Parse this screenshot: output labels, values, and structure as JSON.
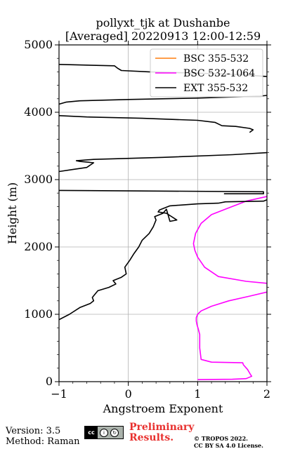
{
  "chart_data": {
    "type": "line",
    "title": "pollyxt_tjk at Dushanbe",
    "subtitle": "[Averaged] 20220913 12:00-12:59",
    "xlabel": "Angstroem Exponent",
    "ylabel": "Height (m)",
    "xlim": [
      -1,
      2
    ],
    "ylim": [
      0,
      5000
    ],
    "xticks": [
      -1,
      0,
      1,
      2
    ],
    "yticks": [
      0,
      1000,
      2000,
      3000,
      4000,
      5000
    ],
    "grid": true,
    "legend_position": "top-right",
    "series": [
      {
        "name": "BSC 355-532",
        "color": "#ff7f0e",
        "x": [],
        "y": []
      },
      {
        "name": "BSC 532-1064",
        "color": "#ff00ff",
        "x": [
          1.0,
          1.5,
          1.7,
          1.78,
          1.76,
          1.72,
          1.66,
          1.65,
          1.2,
          1.05,
          1.03,
          1.03,
          1.01,
          0.99,
          0.98,
          0.98,
          1.0,
          1.05,
          1.2,
          1.45,
          1.75,
          2.0,
          null,
          2.0,
          1.7,
          1.3,
          1.1,
          1.0,
          0.96,
          0.94,
          0.97,
          1.05,
          1.2,
          1.45,
          1.7,
          2.0
        ],
        "y": [
          30,
          35,
          45,
          80,
          110,
          180,
          250,
          280,
          290,
          330,
          500,
          700,
          780,
          850,
          900,
          950,
          1000,
          1050,
          1120,
          1200,
          1270,
          1330,
          null,
          1460,
          1490,
          1560,
          1700,
          1850,
          1950,
          2050,
          2200,
          2350,
          2480,
          2580,
          2680,
          2750
        ]
      },
      {
        "name": "EXT 355-532",
        "color": "#000000",
        "x": [
          -1.0,
          -0.85,
          -0.7,
          -0.55,
          -0.5,
          -0.52,
          -0.44,
          -0.28,
          -0.18,
          -0.22,
          -0.1,
          -0.03,
          -0.05,
          0.02,
          0.08,
          0.15,
          0.2,
          0.3,
          0.36,
          0.4,
          0.38,
          0.5,
          0.55,
          0.6,
          0.7,
          0.55,
          0.43,
          0.45,
          0.6,
          1.0,
          1.3,
          1.4,
          1.95,
          2.0,
          null,
          1.38,
          1.95,
          1.95,
          -1.0,
          null,
          -1.0,
          -0.8,
          -0.6,
          -0.5,
          -0.7,
          -0.75,
          -0.5,
          0.5,
          1.5,
          2.0,
          null,
          1.75,
          1.8,
          1.75,
          1.55,
          1.35,
          1.25,
          1.0,
          0.2,
          -0.6,
          -1.0,
          null,
          -1.0,
          -0.9,
          -0.7,
          0.0,
          1.0,
          1.9,
          2.0,
          null,
          2.0,
          1.6,
          1.0,
          0.3,
          -0.1,
          -0.15,
          -0.2,
          -1.0
        ],
        "y": [
          920,
          1000,
          1100,
          1160,
          1200,
          1250,
          1350,
          1400,
          1450,
          1500,
          1550,
          1600,
          1700,
          1800,
          1900,
          2000,
          2100,
          2200,
          2300,
          2400,
          2450,
          2500,
          2560,
          2380,
          2400,
          2500,
          2520,
          2550,
          2610,
          2640,
          2650,
          2670,
          2680,
          2700,
          null,
          2790,
          2790,
          2820,
          2840,
          null,
          3120,
          3150,
          3180,
          3250,
          3270,
          3280,
          3300,
          3330,
          3370,
          3400,
          null,
          3700,
          3740,
          3760,
          3790,
          3800,
          3850,
          3880,
          3910,
          3930,
          3950,
          null,
          4120,
          4150,
          4170,
          4190,
          4210,
          4240,
          4250,
          null,
          4530,
          4560,
          4580,
          4600,
          4620,
          4650,
          4690,
          4710
        ]
      }
    ]
  },
  "footer": {
    "version": "Version: 3.5",
    "method": "Method: Raman",
    "preliminary_line1": "Preliminary",
    "preliminary_line2": "Results.",
    "copyright": "© TROPOS 2022.",
    "license": "CC BY SA 4.0 License."
  }
}
